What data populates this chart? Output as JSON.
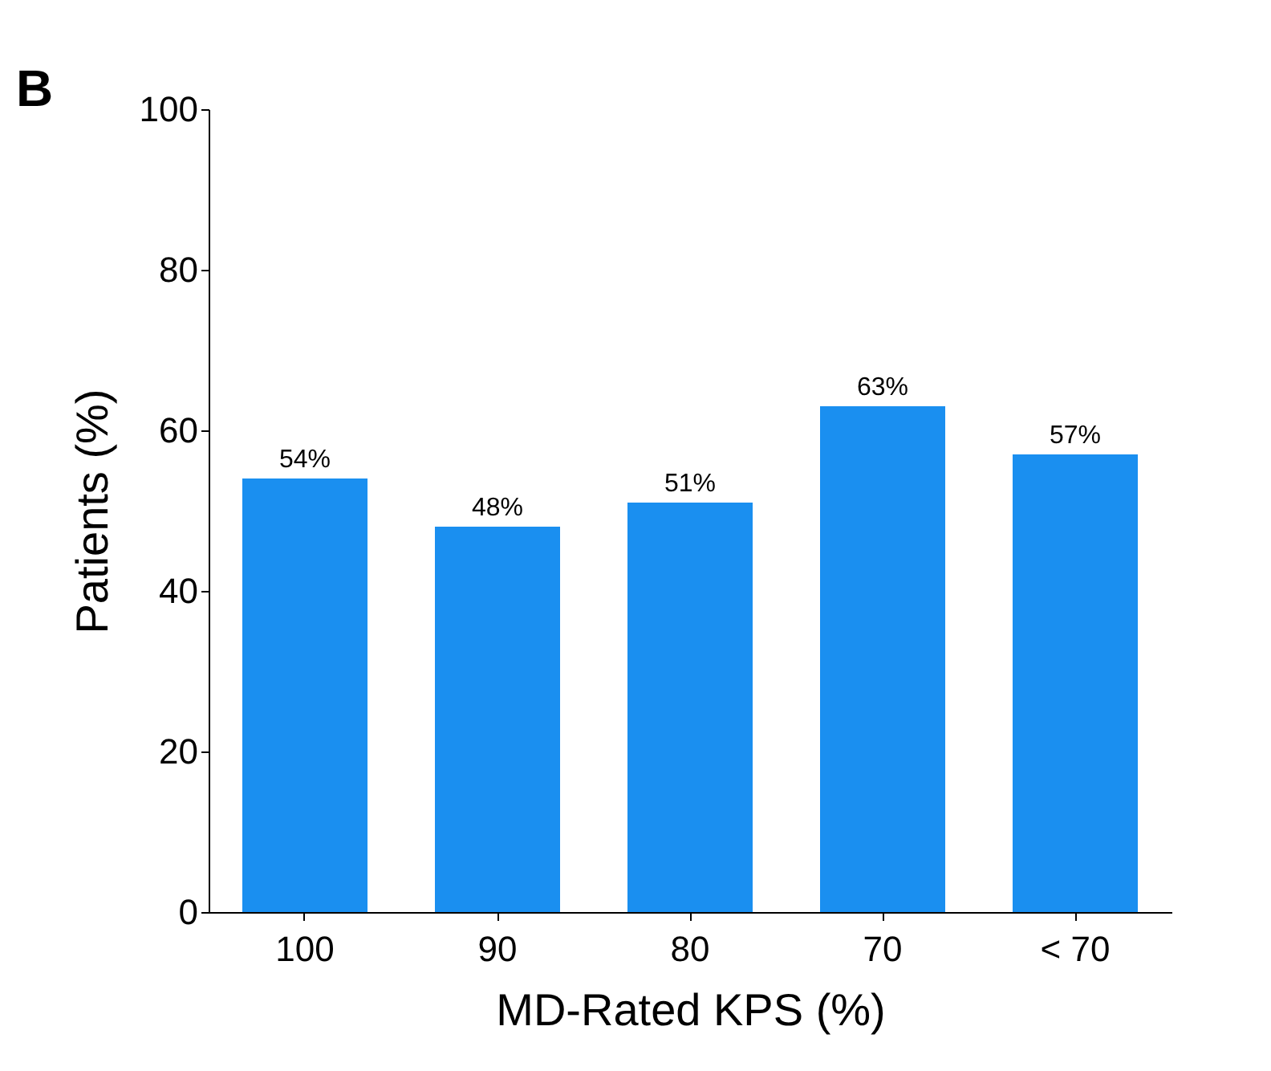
{
  "chart_data": {
    "type": "bar",
    "xlabel": "MD-Rated KPS (%)",
    "ylabel": "Patients (%)",
    "categories": [
      "100",
      "90",
      "80",
      "70",
      "< 70"
    ],
    "values": [
      54,
      48,
      51,
      63,
      57
    ],
    "value_labels": [
      "54%",
      "48%",
      "51%",
      "63%",
      "57%"
    ],
    "color": "#1a8ff0",
    "ylim": [
      0,
      100
    ],
    "yticks": [
      0,
      20,
      40,
      60,
      80,
      100
    ],
    "grid": false,
    "annotations": [
      "B"
    ]
  }
}
